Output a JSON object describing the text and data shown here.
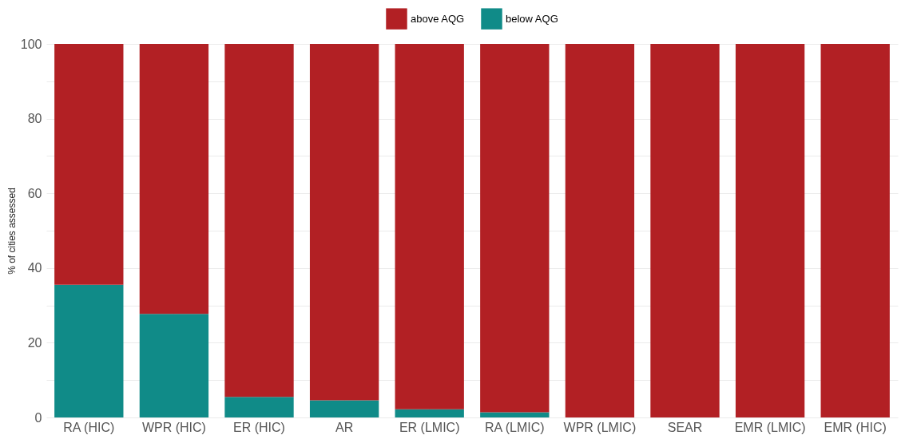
{
  "chart_data": {
    "type": "bar",
    "stacked": true,
    "ylabel": "% of cities assessed",
    "categories": [
      "RA (HIC)",
      "WPR (HIC)",
      "ER (HIC)",
      "AR",
      "ER (LMIC)",
      "RA (LMIC)",
      "WPR (LMIC)",
      "SEAR",
      "EMR (LMIC)",
      "EMR (HIC)"
    ],
    "series": [
      {
        "name": "below AQG",
        "color": "#108b88",
        "values": [
          35.5,
          27.7,
          5.5,
          4.6,
          2.2,
          1.4,
          0,
          0,
          0,
          0
        ]
      },
      {
        "name": "above AQG",
        "color": "#b22024",
        "values": [
          64.5,
          72.3,
          94.5,
          95.4,
          97.8,
          98.6,
          100,
          100,
          100,
          100
        ]
      }
    ],
    "ylim": [
      0,
      100
    ],
    "yticks": [
      0,
      {
        "value": 10,
        "label": null
      },
      20,
      {
        "value": 30,
        "label": null
      },
      40,
      {
        "value": 50,
        "label": null
      },
      60,
      {
        "value": 70,
        "label": null
      },
      80,
      {
        "value": 90,
        "label": null
      },
      100
    ],
    "grid": true,
    "legend": "top"
  }
}
